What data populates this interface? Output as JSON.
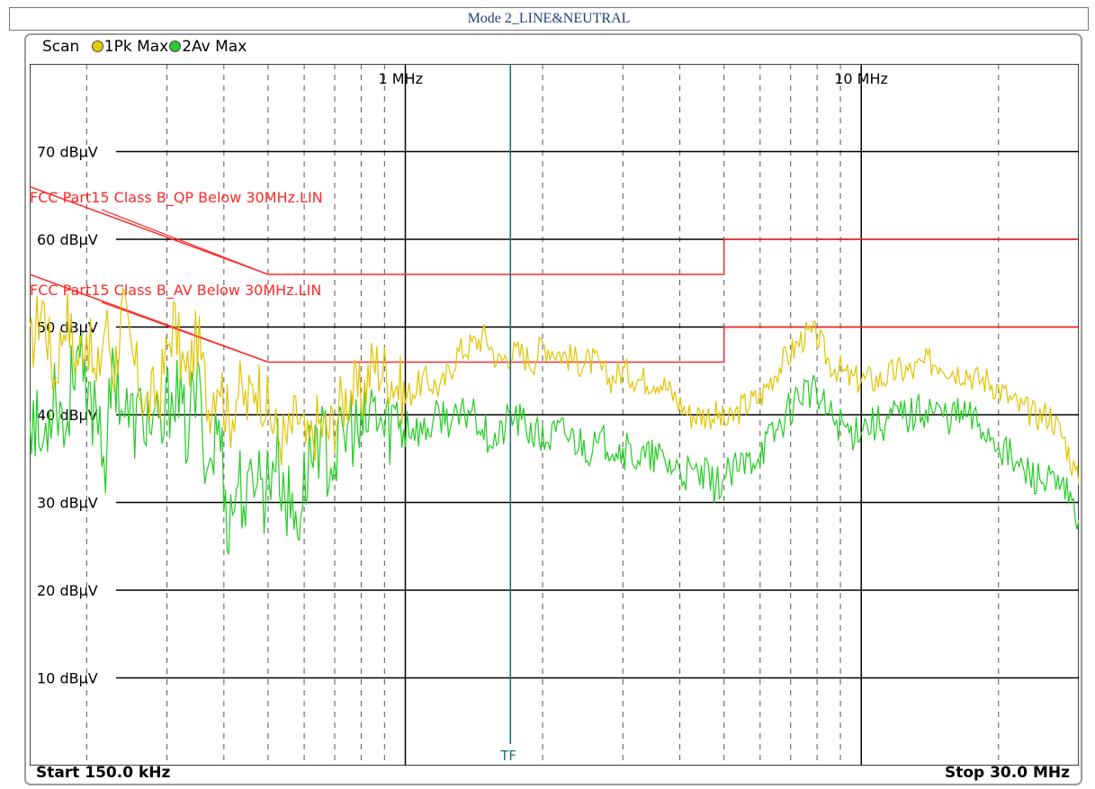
{
  "header": {
    "title": "Mode 2_LINE&NEUTRAL"
  },
  "legend": {
    "scan_label": "Scan",
    "trace1_label": "1Pk Max",
    "trace2_label": "2Av Max"
  },
  "footer": {
    "start_label": "Start 150.0 kHz",
    "stop_label": "Stop 30.0 MHz"
  },
  "colors": {
    "trace_peak": "#e0c400",
    "trace_average": "#22cc22",
    "limit_lines": "#ff2a2a",
    "marker_line": "#1f6f7f",
    "grid_major": "#000000",
    "grid_minor": "#555555"
  },
  "chart_data": {
    "type": "line",
    "x_scale": "log",
    "xlim_hz": [
      150000,
      30000000
    ],
    "ylim": [
      0,
      80
    ],
    "grid": true,
    "y_ticks": [
      {
        "value": 70,
        "label": "70 dBµV"
      },
      {
        "value": 60,
        "label": "60 dBµV"
      },
      {
        "value": 50,
        "label": "50 dBµV"
      },
      {
        "value": 40,
        "label": "40 dBµV"
      },
      {
        "value": 30,
        "label": "30 dBµV"
      },
      {
        "value": 20,
        "label": "20 dBµV"
      },
      {
        "value": 10,
        "label": "10 dBµV"
      }
    ],
    "x_ticks": [
      {
        "value": 1000000,
        "label": "1 MHz"
      },
      {
        "value": 10000000,
        "label": "10 MHz"
      }
    ],
    "limit_lines": [
      {
        "name": "FCC Part15 Class B_QP Below 30MHz.LIN",
        "points": [
          [
            150000,
            66
          ],
          [
            500000,
            56
          ],
          [
            5000000,
            56
          ],
          [
            5000000,
            60
          ],
          [
            30000000,
            60
          ]
        ]
      },
      {
        "name": "FCC Part15 Class B_AV Below 30MHz.LIN",
        "points": [
          [
            150000,
            56
          ],
          [
            500000,
            46
          ],
          [
            5000000,
            46
          ],
          [
            5000000,
            50
          ],
          [
            30000000,
            50
          ]
        ]
      }
    ],
    "marker": {
      "label": "TF",
      "x": 1700000
    },
    "series": [
      {
        "name": "1Pk Max",
        "x": [
          150000,
          160000,
          170000,
          180000,
          190000,
          200000,
          210000,
          220000,
          230000,
          240000,
          250000,
          270000,
          290000,
          310000,
          330000,
          350000,
          370000,
          390000,
          410000,
          430000,
          450000,
          470000,
          490000,
          520000,
          550000,
          580000,
          610000,
          640000,
          680000,
          720000,
          760000,
          800000,
          850000,
          900000,
          950000,
          1000000,
          1100000,
          1200000,
          1300000,
          1400000,
          1500000,
          1600000,
          1700000,
          1800000,
          1900000,
          2000000,
          2200000,
          2400000,
          2600000,
          2800000,
          3000000,
          3300000,
          3600000,
          3900000,
          4200000,
          4500000,
          4800000,
          5100000,
          5500000,
          6000000,
          6500000,
          7000000,
          7500000,
          8000000,
          8500000,
          9000000,
          9500000,
          10000000,
          11000000,
          12000000,
          13000000,
          14000000,
          15000000,
          16000000,
          17000000,
          18000000,
          19000000,
          20000000,
          22000000,
          24000000,
          26000000,
          28000000,
          30000000
        ],
        "values": [
          47,
          53,
          44,
          52,
          46,
          50,
          43,
          51,
          45,
          52,
          47,
          41,
          43,
          51,
          44,
          49,
          41,
          45,
          39,
          43,
          41,
          44,
          42,
          38,
          37,
          40,
          36,
          39,
          38,
          41,
          43,
          42,
          46,
          45,
          44,
          42,
          44,
          43,
          47,
          48,
          49,
          46,
          47,
          47,
          46,
          48,
          47,
          46,
          46,
          44,
          45,
          44,
          44,
          42,
          40,
          40,
          40,
          39,
          41,
          42,
          45,
          47,
          49,
          49,
          46,
          45,
          44,
          44,
          44,
          45,
          45,
          46,
          46,
          45,
          45,
          44,
          44,
          43,
          41,
          40,
          40,
          37,
          32
        ]
      },
      {
        "name": "2Av Max",
        "x": [
          150000,
          160000,
          170000,
          180000,
          190000,
          200000,
          210000,
          220000,
          230000,
          240000,
          250000,
          270000,
          290000,
          310000,
          330000,
          350000,
          370000,
          390000,
          410000,
          430000,
          450000,
          470000,
          490000,
          520000,
          550000,
          580000,
          610000,
          640000,
          680000,
          720000,
          760000,
          800000,
          850000,
          900000,
          950000,
          1000000,
          1100000,
          1200000,
          1300000,
          1400000,
          1500000,
          1600000,
          1700000,
          1800000,
          1900000,
          2000000,
          2200000,
          2400000,
          2600000,
          2800000,
          3000000,
          3300000,
          3600000,
          3900000,
          4200000,
          4500000,
          4800000,
          5100000,
          5500000,
          6000000,
          6500000,
          7000000,
          7500000,
          8000000,
          8500000,
          9000000,
          9500000,
          10000000,
          11000000,
          12000000,
          13000000,
          14000000,
          15000000,
          16000000,
          17000000,
          18000000,
          19000000,
          20000000,
          22000000,
          24000000,
          26000000,
          28000000,
          30000000
        ],
        "values": [
          41,
          36,
          44,
          38,
          49,
          40,
          42,
          35,
          46,
          41,
          39,
          40,
          37,
          44,
          38,
          43,
          34,
          39,
          27,
          33,
          29,
          35,
          31,
          36,
          30,
          28,
          34,
          38,
          35,
          36,
          39,
          37,
          41,
          38,
          40,
          39,
          38,
          40,
          39,
          41,
          38,
          37,
          40,
          39,
          38,
          37,
          38,
          37,
          36,
          37,
          36,
          35,
          35,
          34,
          33,
          33,
          32,
          33,
          34,
          36,
          38,
          41,
          43,
          42,
          40,
          39,
          38,
          39,
          39,
          40,
          40,
          41,
          40,
          40,
          40,
          39,
          38,
          37,
          34,
          33,
          32,
          31,
          28
        ]
      }
    ]
  }
}
